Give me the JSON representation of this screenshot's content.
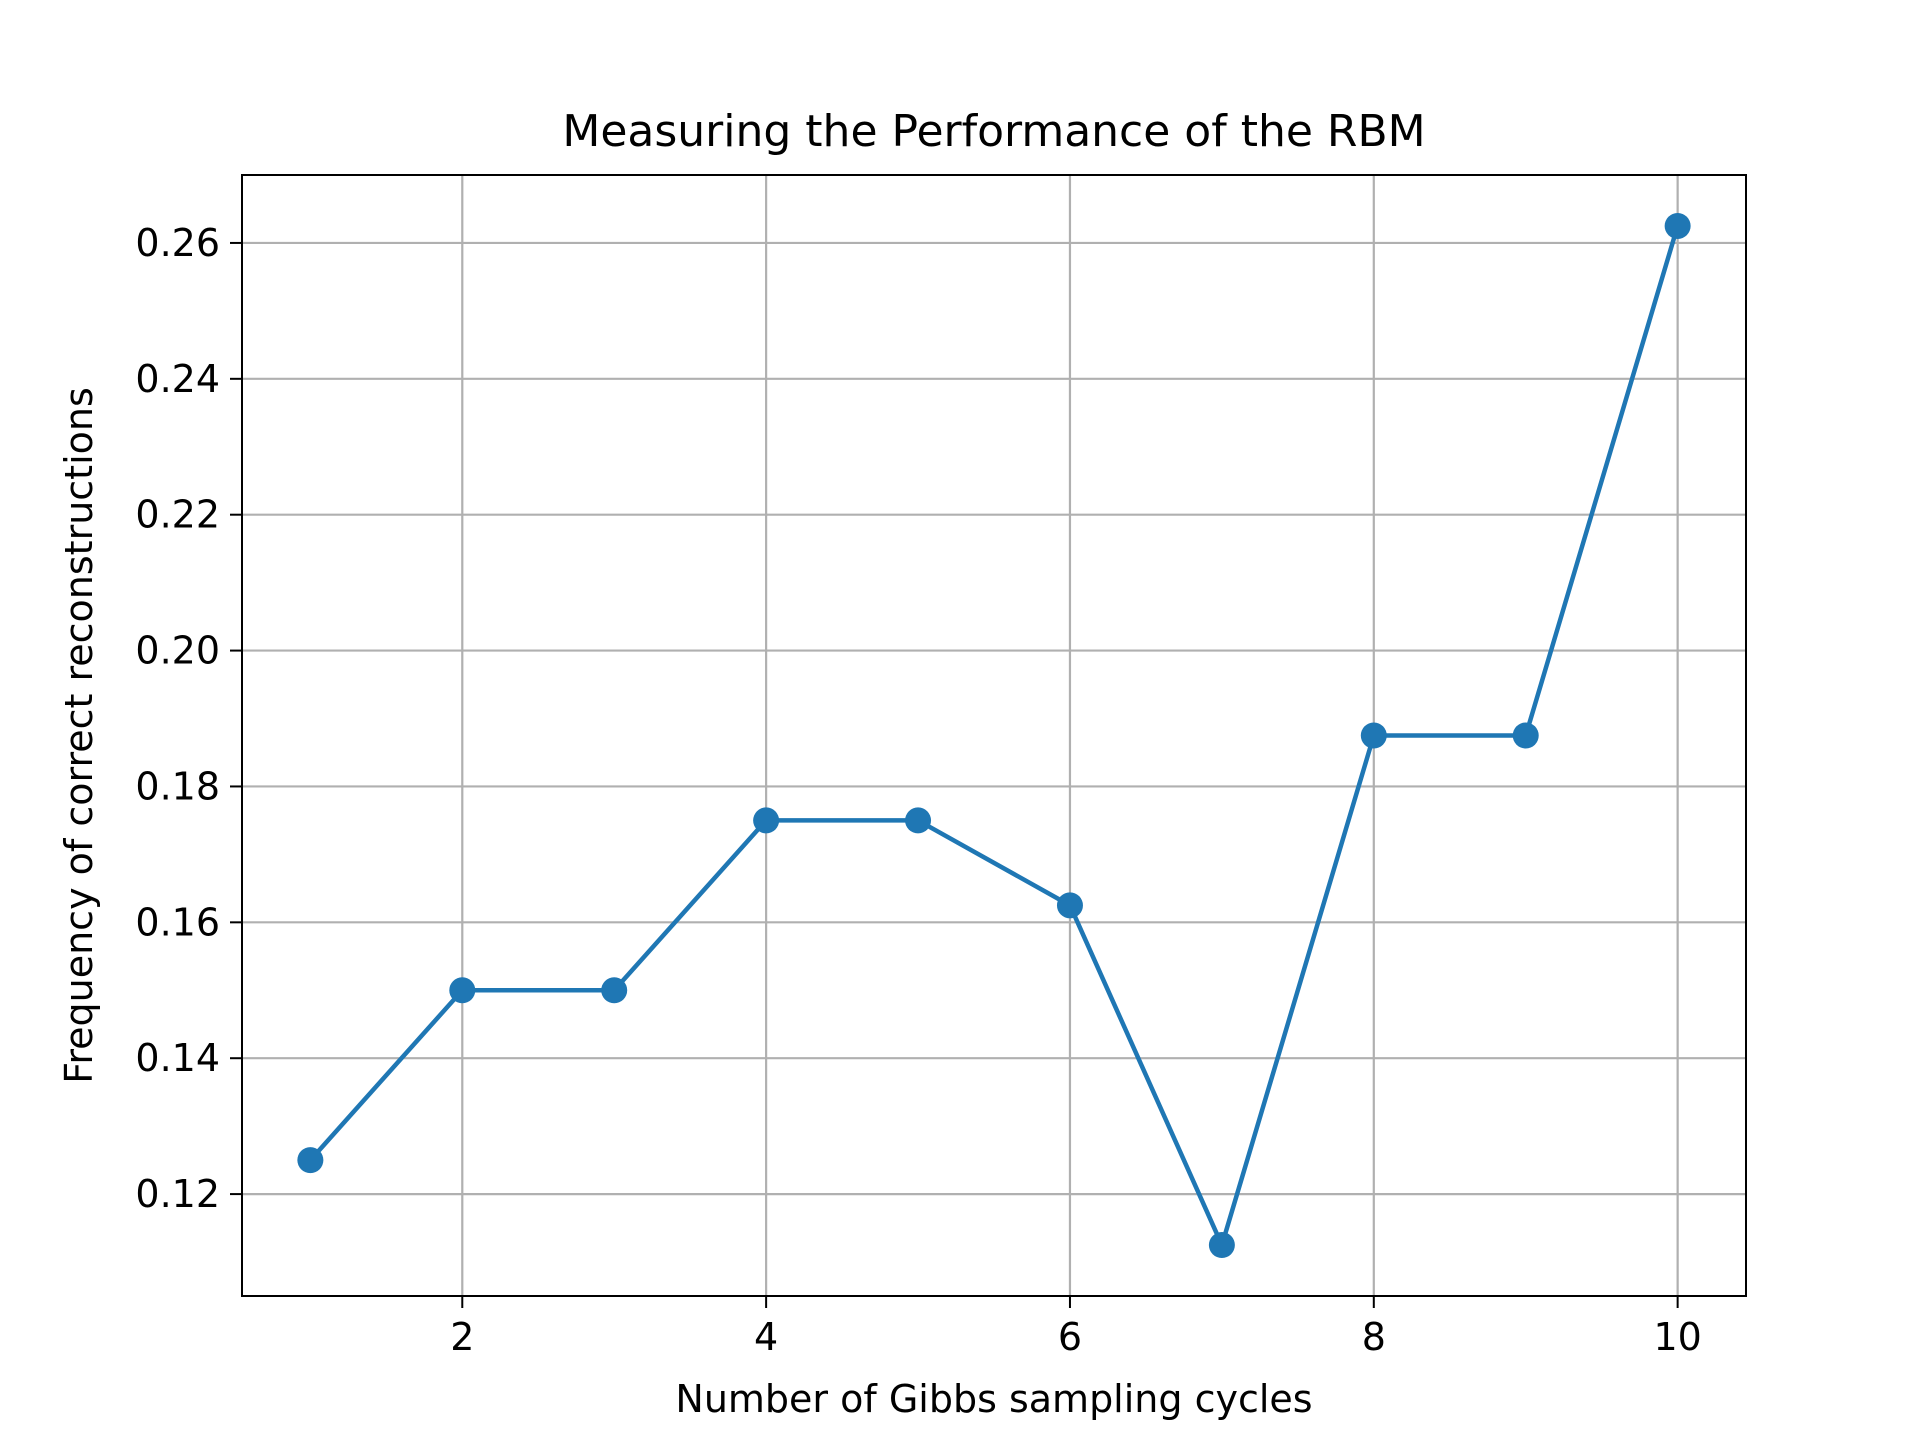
{
  "chart_data": {
    "type": "line",
    "title": "Measuring the Performance of the RBM",
    "xlabel": "Number of Gibbs sampling cycles",
    "ylabel": "Frequency of correct reconstructions",
    "xlim": [
      0.55,
      10.45
    ],
    "ylim": [
      0.105,
      0.27
    ],
    "xticks": [
      2,
      4,
      6,
      8,
      10
    ],
    "xtick_labels": [
      "2",
      "4",
      "6",
      "8",
      "10"
    ],
    "yticks": [
      0.12,
      0.14,
      0.16,
      0.18,
      0.2,
      0.22,
      0.24,
      0.26
    ],
    "ytick_labels": [
      "0.12",
      "0.14",
      "0.16",
      "0.18",
      "0.20",
      "0.22",
      "0.24",
      "0.26"
    ],
    "grid": true,
    "legend": "none",
    "series": [
      {
        "color": "#1f77b4",
        "marker": "circle",
        "x": [
          1,
          2,
          3,
          4,
          5,
          6,
          7,
          8,
          9,
          10
        ],
        "y": [
          0.125,
          0.15,
          0.15,
          0.175,
          0.175,
          0.1625,
          0.1125,
          0.1875,
          0.1875,
          0.2625
        ]
      }
    ]
  },
  "colors": {
    "grid": "#b0b0b0",
    "axes": "#000000",
    "series": "#1f77b4"
  }
}
